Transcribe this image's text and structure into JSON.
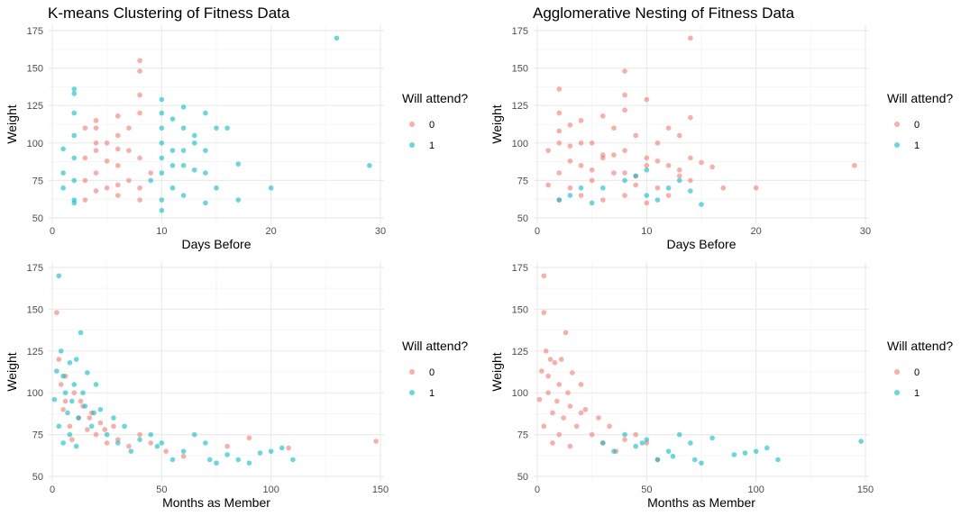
{
  "colors": {
    "c0": "#F8766D",
    "c1": "#00BFC4",
    "grid_major": "#ebebeb",
    "grid_minor": "#f4f4f4"
  },
  "chart_data": [
    {
      "type": "scatter",
      "title": "K-means Clustering of Fitness Data",
      "xlabel": "Days Before",
      "ylabel": "Weight",
      "xlim": [
        0,
        30
      ],
      "ylim": [
        50,
        175
      ],
      "xticks": [
        0,
        10,
        20,
        30
      ],
      "yticks": [
        50,
        75,
        100,
        125,
        150,
        175
      ],
      "grid": true,
      "legend": {
        "title": "Will attend?",
        "entries": [
          "0",
          "1"
        ],
        "placement": "right"
      },
      "series": [
        {
          "name": "0",
          "x": [
            3,
            3,
            3,
            4,
            4,
            4,
            4,
            5,
            5,
            6,
            6,
            6,
            6,
            7,
            7,
            8,
            8,
            8,
            8,
            8,
            9,
            4,
            6,
            7,
            8,
            3,
            4,
            5,
            6,
            8
          ],
          "y": [
            62,
            75,
            90,
            68,
            80,
            95,
            115,
            70,
            100,
            65,
            85,
            105,
            118,
            75,
            110,
            148,
            155,
            62,
            90,
            120,
            80,
            100,
            72,
            95,
            132,
            110,
            110,
            88,
            96,
            70
          ]
        },
        {
          "name": "1",
          "x": [
            1,
            1,
            1,
            2,
            2,
            2,
            2,
            2,
            2,
            10,
            10,
            10,
            10,
            10,
            11,
            11,
            12,
            12,
            12,
            13,
            13,
            14,
            14,
            14,
            15,
            16,
            17,
            20,
            29,
            9,
            10,
            11,
            12,
            13,
            14,
            26,
            2,
            2,
            15,
            10,
            12,
            17,
            11,
            10
          ],
          "y": [
            70,
            80,
            96,
            60,
            75,
            90,
            105,
            120,
            136,
            55,
            80,
            100,
            120,
            129,
            70,
            95,
            65,
            110,
            124,
            82,
            105,
            60,
            95,
            120,
            110,
            110,
            86,
            70,
            85,
            75,
            90,
            85,
            95,
            100,
            80,
            170,
            133,
            62,
            70,
            110,
            85,
            62,
            116,
            62
          ]
        }
      ]
    },
    {
      "type": "scatter",
      "title": "Agglomerative Nesting of Fitness Data",
      "xlabel": "Days Before",
      "ylabel": "Weight",
      "xlim": [
        0,
        30
      ],
      "ylim": [
        50,
        175
      ],
      "xticks": [
        0,
        10,
        20,
        30
      ],
      "yticks": [
        50,
        75,
        100,
        125,
        150,
        175
      ],
      "grid": true,
      "legend": {
        "title": "Will attend?",
        "entries": [
          "0",
          "1"
        ],
        "placement": "right"
      },
      "series": [
        {
          "name": "0",
          "x": [
            1,
            1,
            2,
            2,
            2,
            2,
            2,
            3,
            3,
            3,
            4,
            4,
            4,
            5,
            5,
            6,
            6,
            6,
            7,
            7,
            8,
            8,
            8,
            8,
            8,
            9,
            9,
            10,
            10,
            10,
            11,
            11,
            12,
            12,
            13,
            13,
            14,
            14,
            14,
            15,
            16,
            17,
            20,
            29,
            4,
            6,
            8,
            10,
            12,
            14,
            2,
            3,
            5,
            7,
            9,
            11,
            13
          ],
          "y": [
            72,
            95,
            62,
            80,
            100,
            120,
            136,
            70,
            88,
            112,
            65,
            85,
            115,
            75,
            100,
            62,
            90,
            118,
            80,
            110,
            148,
            132,
            65,
            95,
            122,
            72,
            105,
            60,
            85,
            129,
            70,
            100,
            65,
            110,
            78,
            105,
            170,
            90,
            117,
            87,
            84,
            70,
            70,
            85,
            100,
            92,
            80,
            90,
            85,
            75,
            108,
            98,
            82,
            92,
            78,
            88,
            82
          ]
        },
        {
          "name": "1",
          "x": [
            2,
            3,
            4,
            5,
            6,
            8,
            9,
            10,
            10,
            11,
            12,
            13,
            14,
            15
          ],
          "y": [
            62,
            65,
            70,
            60,
            70,
            75,
            78,
            65,
            82,
            62,
            70,
            75,
            68,
            59
          ]
        }
      ]
    },
    {
      "type": "scatter",
      "xlabel": "Months as Member",
      "ylabel": "Weight",
      "xlim": [
        0,
        150
      ],
      "ylim": [
        50,
        175
      ],
      "xticks": [
        0,
        50,
        100,
        150
      ],
      "yticks": [
        50,
        75,
        100,
        125,
        150,
        175
      ],
      "grid": true,
      "legend": {
        "title": "Will attend?",
        "entries": [
          "0",
          "1"
        ],
        "placement": "right"
      },
      "series": [
        {
          "name": "0",
          "x": [
            2,
            3,
            4,
            5,
            6,
            8,
            10,
            12,
            14,
            16,
            18,
            20,
            22,
            25,
            28,
            30,
            35,
            40,
            45,
            52,
            60,
            80,
            90,
            108,
            148,
            6,
            9,
            13,
            17,
            24
          ],
          "y": [
            148,
            120,
            105,
            90,
            95,
            80,
            100,
            85,
            92,
            78,
            88,
            75,
            82,
            70,
            80,
            72,
            68,
            75,
            70,
            65,
            62,
            68,
            73,
            67,
            71,
            110,
            72,
            95,
            85,
            78
          ]
        },
        {
          "name": "1",
          "x": [
            1,
            2,
            3,
            4,
            5,
            6,
            7,
            8,
            9,
            10,
            11,
            12,
            13,
            14,
            15,
            16,
            18,
            20,
            22,
            25,
            28,
            30,
            33,
            36,
            40,
            45,
            48,
            50,
            55,
            60,
            65,
            70,
            72,
            75,
            80,
            85,
            90,
            95,
            100,
            105,
            110,
            3,
            5,
            8,
            11,
            19
          ],
          "y": [
            96,
            113,
            170,
            125,
            110,
            100,
            88,
            118,
            95,
            105,
            120,
            85,
            136,
            100,
            92,
            112,
            80,
            105,
            90,
            75,
            85,
            70,
            80,
            65,
            72,
            75,
            68,
            70,
            60,
            65,
            75,
            70,
            60,
            58,
            63,
            60,
            58,
            64,
            65,
            67,
            60,
            80,
            70,
            75,
            68,
            88
          ]
        }
      ]
    },
    {
      "type": "scatter",
      "xlabel": "Months as Member",
      "ylabel": "Weight",
      "xlim": [
        0,
        150
      ],
      "ylim": [
        50,
        175
      ],
      "xticks": [
        0,
        50,
        100,
        150
      ],
      "yticks": [
        50,
        75,
        100,
        125,
        150,
        175
      ],
      "grid": true,
      "legend": {
        "title": "Will attend?",
        "entries": [
          "0",
          "1"
        ],
        "placement": "right"
      },
      "series": [
        {
          "name": "0",
          "x": [
            1,
            2,
            3,
            3,
            4,
            5,
            5,
            6,
            7,
            8,
            9,
            10,
            11,
            12,
            13,
            14,
            15,
            16,
            18,
            20,
            22,
            25,
            28,
            30,
            33,
            36,
            40,
            45,
            50,
            55,
            3,
            7,
            10,
            15,
            20
          ],
          "y": [
            96,
            113,
            170,
            148,
            125,
            110,
            100,
            120,
            88,
            118,
            95,
            105,
            120,
            85,
            136,
            100,
            92,
            112,
            80,
            105,
            90,
            75,
            85,
            70,
            80,
            65,
            72,
            75,
            70,
            60,
            80,
            70,
            75,
            68,
            88
          ]
        },
        {
          "name": "1",
          "x": [
            40,
            45,
            48,
            50,
            55,
            60,
            62,
            65,
            70,
            72,
            75,
            80,
            90,
            95,
            100,
            105,
            110,
            148,
            30,
            35
          ],
          "y": [
            75,
            68,
            70,
            72,
            60,
            65,
            62,
            75,
            70,
            60,
            58,
            73,
            63,
            64,
            65,
            67,
            60,
            71,
            70,
            65
          ]
        }
      ]
    }
  ]
}
